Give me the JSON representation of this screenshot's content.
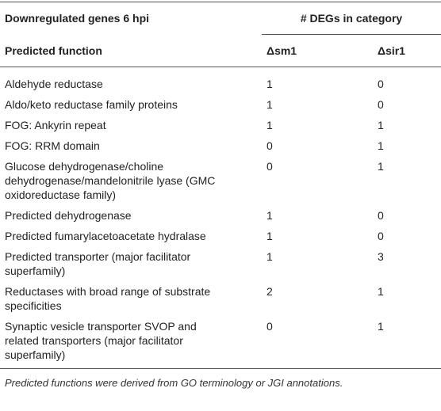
{
  "table": {
    "header": [
      "Downregulated genes 6 hpi",
      "# DEGs in category"
    ],
    "columns": [
      "Predicted function",
      "Δsm1",
      "Δsir1"
    ],
    "rows": [
      [
        "Aldehyde reductase",
        1,
        0
      ],
      [
        "Aldo/keto reductase family proteins",
        1,
        0
      ],
      [
        "FOG: Ankyrin repeat",
        1,
        1
      ],
      [
        "FOG: RRM domain",
        0,
        1
      ],
      [
        "Glucose dehydrogenase/choline dehydrogenase/mandelonitrile lyase (GMC oxidoreductase family)",
        0,
        1
      ],
      [
        "Predicted dehydrogenase",
        1,
        0
      ],
      [
        "Predicted fumarylacetoacetate hydralase",
        1,
        0
      ],
      [
        "Predicted transporter (major facilitator superfamily)",
        1,
        3
      ],
      [
        "Reductases with broad range of substrate specificities",
        2,
        1
      ],
      [
        "Synaptic vesicle transporter SVOP and related transporters (major facilitator superfamily)",
        0,
        1
      ]
    ],
    "footnote": "Predicted functions were derived from GO terminology or JGI annotations."
  }
}
